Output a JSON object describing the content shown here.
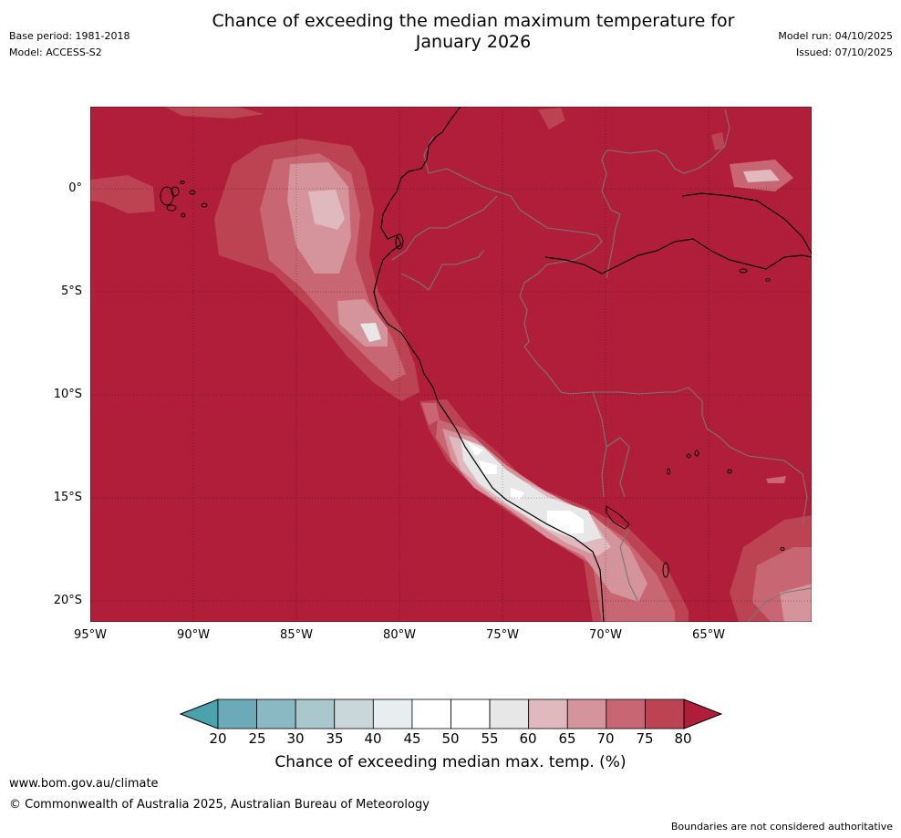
{
  "header": {
    "base_period": "Base period: 1981-2018",
    "model": "Model: ACCESS-S2",
    "title_line1": "Chance of exceeding the median maximum temperature for",
    "title_line2": "January 2026",
    "model_run": "Model run: 04/10/2025",
    "issued": "Issued: 07/10/2025"
  },
  "map": {
    "background_color": "#b01e3a",
    "lat_labels": [
      "0°",
      "5°S",
      "10°S",
      "15°S",
      "20°S"
    ],
    "lon_labels": [
      "95°W",
      "90°W",
      "85°W",
      "80°W",
      "75°W",
      "70°W",
      "65°W"
    ]
  },
  "colorbar": {
    "bins": [
      {
        "from": 20,
        "to": 25,
        "color": "#6aabb7"
      },
      {
        "from": 25,
        "to": 30,
        "color": "#8ab8c3"
      },
      {
        "from": 30,
        "to": 35,
        "color": "#a9c7cc"
      },
      {
        "from": 35,
        "to": 40,
        "color": "#c9d6da"
      },
      {
        "from": 40,
        "to": 45,
        "color": "#e8eef0"
      },
      {
        "from": 45,
        "to": 50,
        "color": "#ffffff"
      },
      {
        "from": 50,
        "to": 55,
        "color": "#ffffff"
      },
      {
        "from": 55,
        "to": 60,
        "color": "#e7e7e8"
      },
      {
        "from": 60,
        "to": 65,
        "color": "#dfb9be"
      },
      {
        "from": 65,
        "to": 70,
        "color": "#d5939b"
      },
      {
        "from": 70,
        "to": 75,
        "color": "#c86673"
      },
      {
        "from": 75,
        "to": 80,
        "color": "#bc4351"
      }
    ],
    "under_color": "#4aa3ac",
    "over_color": "#b01e3a",
    "tick_labels": [
      "20",
      "25",
      "30",
      "35",
      "40",
      "45",
      "50",
      "55",
      "60",
      "65",
      "70",
      "75",
      "80"
    ],
    "title": "Chance of exceeding median max. temp. (%)"
  },
  "footer": {
    "url": "www.bom.gov.au/climate",
    "copyright": "© Commonwealth of Australia 2025, Australian Bureau of Meteorology",
    "disclaimer": "Boundaries are not considered authoritative"
  }
}
